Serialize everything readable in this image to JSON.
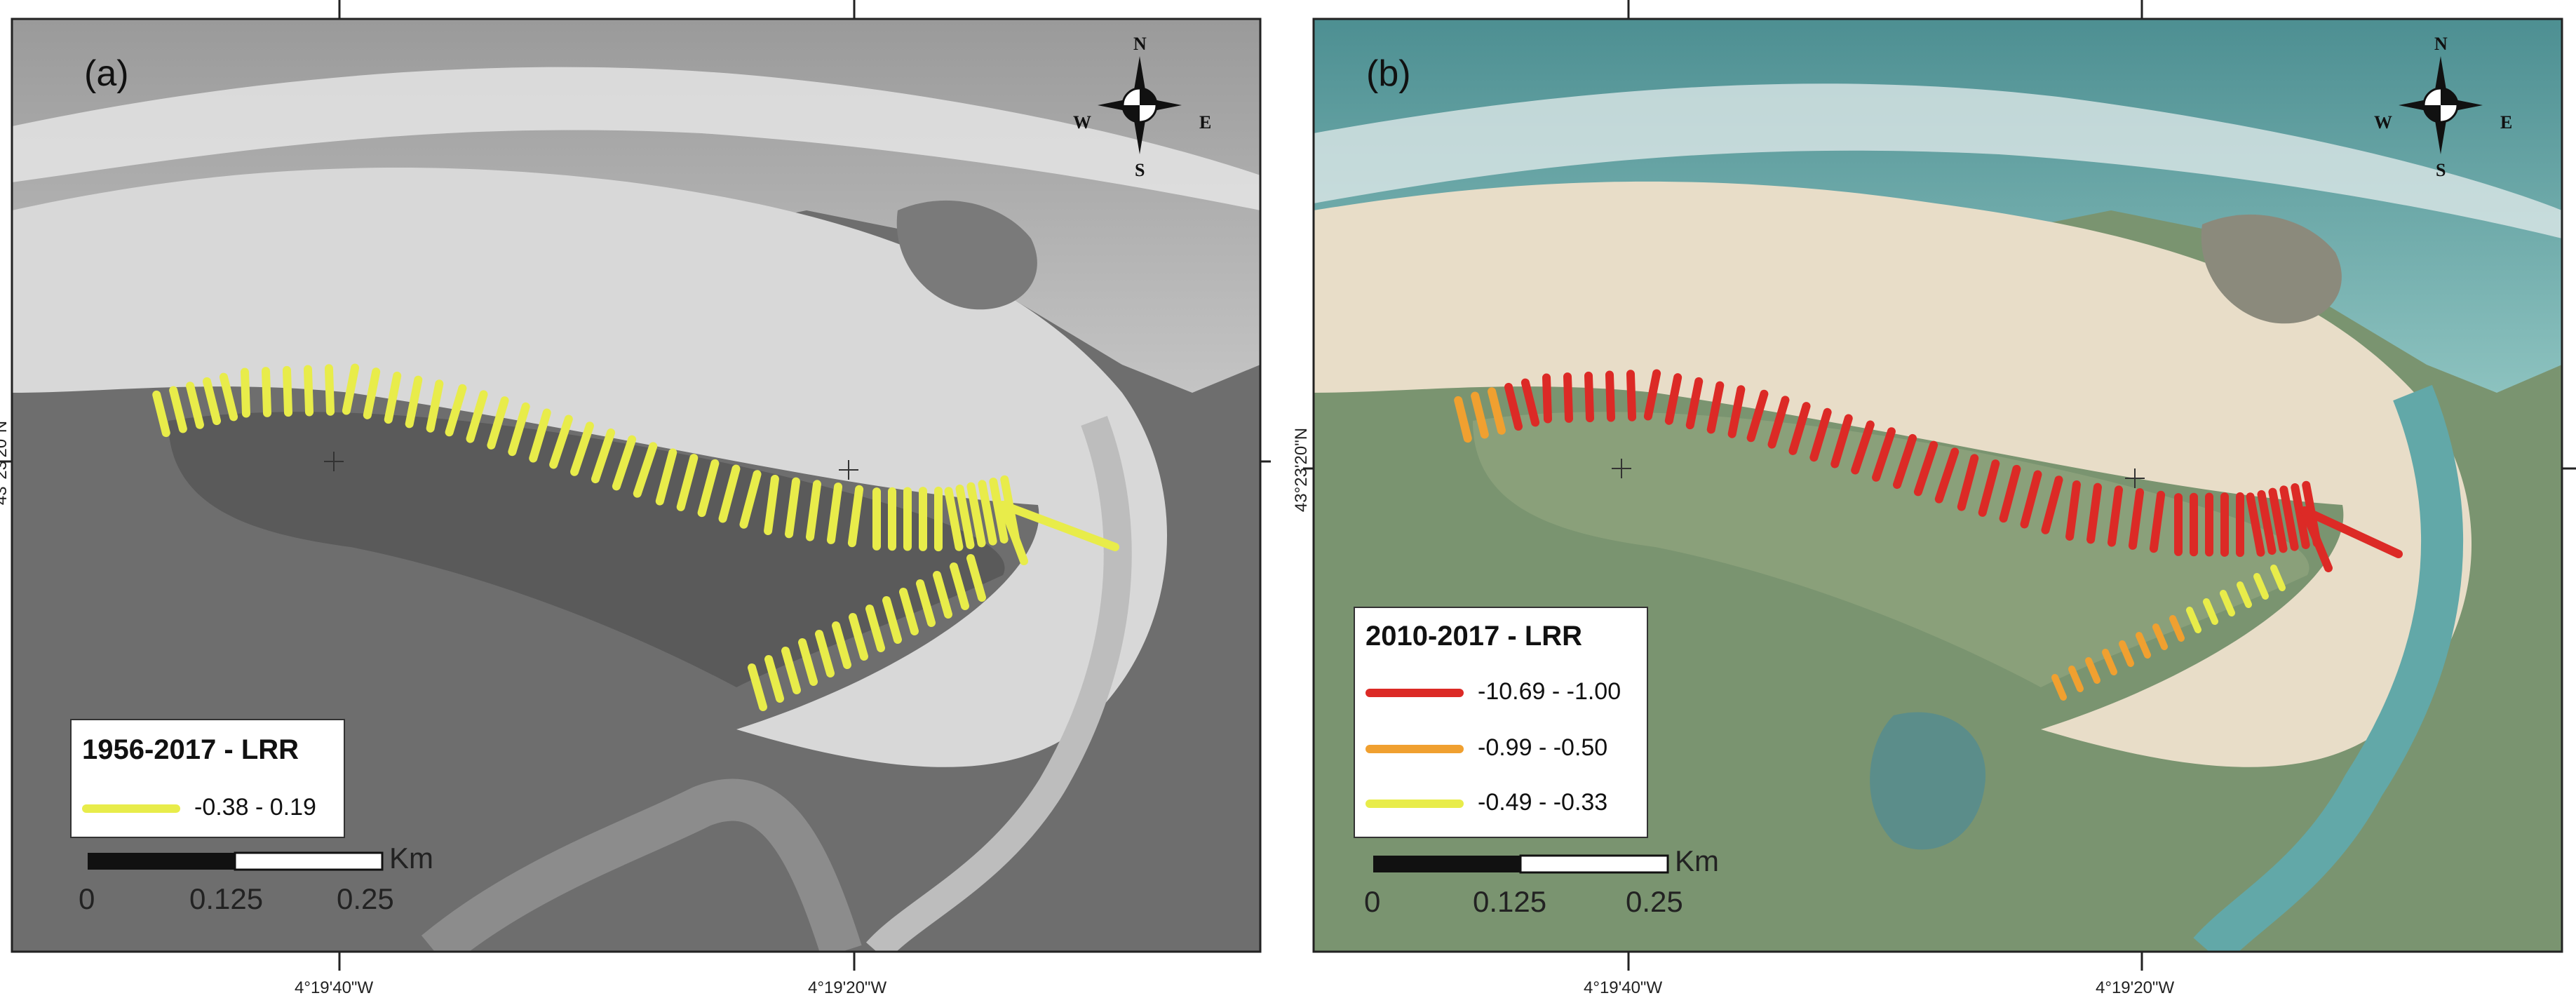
{
  "panels": [
    {
      "tag": "(a)",
      "legend": {
        "title": "1956-2017  -  LRR",
        "entries": [
          {
            "label": "-0.38 - 0.19",
            "color": "#e8ec4a"
          }
        ]
      },
      "scale": {
        "unit": "Km",
        "ticks": [
          "0",
          "0.125",
          "0.25"
        ]
      },
      "lon_labels": [
        "4°19'40\"W",
        "4°19'20\"W"
      ],
      "lat_label": "43°23'20\"N",
      "imagery": "grayscale aerial photograph"
    },
    {
      "tag": "(b)",
      "legend": {
        "title": "2010-2017  -  LRR",
        "entries": [
          {
            "label": "-10.69 - -1.00",
            "color": "#dc2a26"
          },
          {
            "label": "-0.99 - -0.50",
            "color": "#f0a030"
          },
          {
            "label": "-0.49 - -0.33",
            "color": "#e8ec4a"
          }
        ]
      },
      "scale": {
        "unit": "Km",
        "ticks": [
          "0",
          "0.125",
          "0.25"
        ]
      },
      "lon_labels": [
        "4°19'40\"W",
        "4°19'20\"W"
      ],
      "lat_label": "43°23'20\"N",
      "imagery": "colour aerial orthophoto"
    }
  ],
  "compass": {
    "n": "N",
    "s": "S",
    "e": "E",
    "w": "W"
  },
  "colors": {
    "high_loss": "#dc2a26",
    "mid_loss": "#f0a030",
    "low": "#e8ec4a"
  }
}
